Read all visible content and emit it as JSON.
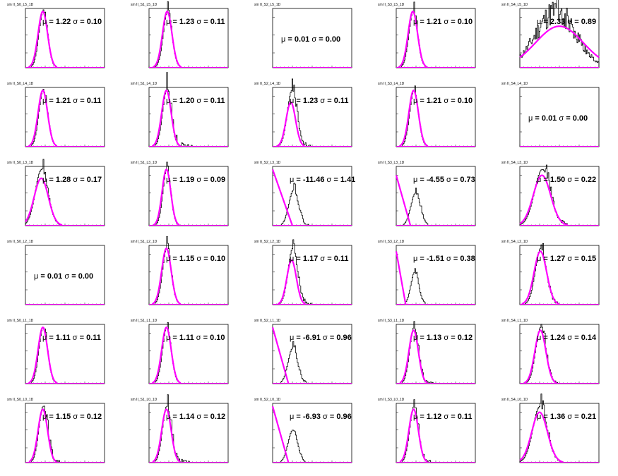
{
  "colors": {
    "fit": "#ff00ff",
    "hist": "#000000",
    "frame": "#000000",
    "background": "#ffffff"
  },
  "chart_data": [
    {
      "type": "histogram",
      "title": "sm II_S0_L5_1D",
      "mu": "1.22",
      "sigma": "0.10",
      "fit": {
        "mean": 0.22,
        "sigma": 0.06,
        "amp": 0.95,
        "kind": "gauss"
      },
      "hist": {
        "peak": 0.22,
        "width": 0.055,
        "tail": 0.05,
        "tailAmp": 0.25
      }
    },
    {
      "type": "histogram",
      "title": "sm II_S1_L5_1D",
      "mu": "1.23",
      "sigma": "0.11",
      "fit": {
        "mean": 0.23,
        "sigma": 0.06,
        "amp": 0.95,
        "kind": "gauss"
      },
      "hist": {
        "peak": 0.23,
        "width": 0.055,
        "tail": 0.04,
        "tailAmp": 0.2
      }
    },
    {
      "type": "histogram",
      "title": "sm II_S2_L5_1D",
      "mu": "0.01",
      "sigma": "0.00",
      "fit": null,
      "hist": null
    },
    {
      "type": "histogram",
      "title": "sm II_S3_L5_1D",
      "mu": "1.21",
      "sigma": "0.10",
      "fit": {
        "mean": 0.21,
        "sigma": 0.06,
        "amp": 0.95,
        "kind": "gauss"
      },
      "hist": {
        "peak": 0.21,
        "width": 0.055,
        "tail": 0.06,
        "tailAmp": 0.25
      }
    },
    {
      "type": "histogram",
      "title": "sm II_S4_L5_1D",
      "mu": "2.33",
      "sigma": "0.89",
      "fit": {
        "mean": 0.5,
        "sigma": 0.3,
        "amp": 0.7,
        "kind": "gauss"
      },
      "hist": {
        "peak": 0.45,
        "width": 0.25,
        "tail": 0.05,
        "tailAmp": 0.3,
        "noisy": true
      }
    },
    {
      "type": "histogram",
      "title": "sm II_S0_L4_1D",
      "mu": "1.21",
      "sigma": "0.11",
      "fit": {
        "mean": 0.22,
        "sigma": 0.06,
        "amp": 0.95,
        "kind": "gauss"
      },
      "hist": {
        "peak": 0.22,
        "width": 0.055,
        "tail": 0.05,
        "tailAmp": 0.25
      }
    },
    {
      "type": "histogram",
      "title": "sm II_S1_L4_1D",
      "mu": "1.20",
      "sigma": "0.11",
      "fit": {
        "mean": 0.22,
        "sigma": 0.06,
        "amp": 0.95,
        "kind": "gauss"
      },
      "hist": {
        "peak": 0.22,
        "width": 0.055,
        "tail": 0.12,
        "tailAmp": 0.35
      }
    },
    {
      "type": "histogram",
      "title": "sm II_S2_L4_1D",
      "mu": "1.23",
      "sigma": "0.11",
      "fit": {
        "mean": 0.23,
        "sigma": 0.06,
        "amp": 0.75,
        "kind": "gauss"
      },
      "hist": {
        "peak": 0.24,
        "width": 0.06,
        "tail": 0.1,
        "tailAmp": 0.3
      }
    },
    {
      "type": "histogram",
      "title": "sm II_S3_L4_1D",
      "mu": "1.21",
      "sigma": "0.10",
      "fit": {
        "mean": 0.22,
        "sigma": 0.06,
        "amp": 0.95,
        "kind": "gauss"
      },
      "hist": {
        "peak": 0.22,
        "width": 0.055,
        "tail": 0.04,
        "tailAmp": 0.15
      }
    },
    {
      "type": "histogram",
      "title": "sm II_S4_L4_1D",
      "mu": "0.01",
      "sigma": "0.00",
      "fit": null,
      "hist": null
    },
    {
      "type": "histogram",
      "title": "sm II_S0_L3_1D",
      "mu": "1.28",
      "sigma": "0.17",
      "fit": {
        "mean": 0.2,
        "sigma": 0.09,
        "amp": 0.8,
        "kind": "gauss"
      },
      "hist": {
        "peak": 0.2,
        "width": 0.08,
        "tail": 0.08,
        "tailAmp": 0.3
      }
    },
    {
      "type": "histogram",
      "title": "sm II_S1_L3_1D",
      "mu": "1.19",
      "sigma": "0.09",
      "fit": {
        "mean": 0.22,
        "sigma": 0.055,
        "amp": 0.95,
        "kind": "gauss"
      },
      "hist": {
        "peak": 0.22,
        "width": 0.05,
        "tail": 0.04,
        "tailAmp": 0.15
      }
    },
    {
      "type": "histogram",
      "title": "sm II_S2_L3_1D",
      "mu": "-11.46",
      "sigma": "1.41",
      "fit": {
        "mean": 0.0,
        "sigma": 0.0,
        "amp": 0.95,
        "kind": "line",
        "end": 0.25
      },
      "hist": {
        "peak": 0.26,
        "width": 0.06,
        "tail": 0.08,
        "tailAmp": 0.2,
        "amp": 0.6
      }
    },
    {
      "type": "histogram",
      "title": "sm II_S3_L3_1D",
      "mu": "-4.55",
      "sigma": "0.73",
      "fit": {
        "mean": 0.0,
        "sigma": 0.0,
        "amp": 0.85,
        "kind": "line",
        "end": 0.18
      },
      "hist": {
        "peak": 0.24,
        "width": 0.06,
        "tail": 0.06,
        "tailAmp": 0.2,
        "amp": 0.55
      }
    },
    {
      "type": "histogram",
      "title": "sm II_S4_L3_1D",
      "mu": "1.50",
      "sigma": "0.22",
      "fit": {
        "mean": 0.28,
        "sigma": 0.11,
        "amp": 0.85,
        "kind": "gauss"
      },
      "hist": {
        "peak": 0.28,
        "width": 0.1,
        "tail": 0.15,
        "tailAmp": 0.3
      }
    },
    {
      "type": "histogram",
      "title": "sm II_S0_L2_1D",
      "mu": "0.01",
      "sigma": "0.00",
      "fit": null,
      "hist": null
    },
    {
      "type": "histogram",
      "title": "sm II_S1_L2_1D",
      "mu": "1.15",
      "sigma": "0.10",
      "fit": {
        "mean": 0.22,
        "sigma": 0.06,
        "amp": 0.95,
        "kind": "gauss"
      },
      "hist": {
        "peak": 0.22,
        "width": 0.055,
        "tail": 0.05,
        "tailAmp": 0.25
      }
    },
    {
      "type": "histogram",
      "title": "sm II_S2_L2_1D",
      "mu": "1.17",
      "sigma": "0.11",
      "fit": {
        "mean": 0.24,
        "sigma": 0.06,
        "amp": 0.75,
        "kind": "gauss"
      },
      "hist": {
        "peak": 0.25,
        "width": 0.06,
        "tail": 0.1,
        "tailAmp": 0.25
      }
    },
    {
      "type": "histogram",
      "title": "sm II_S3_L2_1D",
      "mu": "-1.51",
      "sigma": "0.38",
      "fit": {
        "mean": 0.0,
        "sigma": 0.0,
        "amp": 0.9,
        "kind": "line",
        "end": 0.12
      },
      "hist": {
        "peak": 0.23,
        "width": 0.05,
        "tail": 0.06,
        "tailAmp": 0.15,
        "amp": 0.55
      }
    },
    {
      "type": "histogram",
      "title": "sm II_S4_L2_1D",
      "mu": "1.27",
      "sigma": "0.15",
      "fit": {
        "mean": 0.26,
        "sigma": 0.08,
        "amp": 0.9,
        "kind": "gauss"
      },
      "hist": {
        "peak": 0.26,
        "width": 0.07,
        "tail": 0.1,
        "tailAmp": 0.3
      }
    },
    {
      "type": "histogram",
      "title": "sm II_S0_L1_1D",
      "mu": "1.11",
      "sigma": "0.11",
      "fit": {
        "mean": 0.22,
        "sigma": 0.06,
        "amp": 0.95,
        "kind": "gauss"
      },
      "hist": {
        "peak": 0.22,
        "width": 0.055,
        "tail": 0.06,
        "tailAmp": 0.25
      }
    },
    {
      "type": "histogram",
      "title": "sm II_S1_L1_1D",
      "mu": "1.11",
      "sigma": "0.10",
      "fit": {
        "mean": 0.22,
        "sigma": 0.06,
        "amp": 0.95,
        "kind": "gauss"
      },
      "hist": {
        "peak": 0.22,
        "width": 0.055,
        "tail": 0.04,
        "tailAmp": 0.2
      }
    },
    {
      "type": "histogram",
      "title": "sm II_S2_L1_1D",
      "mu": "-6.91",
      "sigma": "0.96",
      "fit": {
        "mean": 0.0,
        "sigma": 0.0,
        "amp": 0.95,
        "kind": "line",
        "end": 0.2
      },
      "hist": {
        "peak": 0.25,
        "width": 0.06,
        "tail": 0.08,
        "tailAmp": 0.2,
        "amp": 0.6
      }
    },
    {
      "type": "histogram",
      "title": "sm II_S3_L1_1D",
      "mu": "1.13",
      "sigma": "0.12",
      "fit": {
        "mean": 0.22,
        "sigma": 0.06,
        "amp": 0.9,
        "kind": "gauss"
      },
      "hist": {
        "peak": 0.22,
        "width": 0.055,
        "tail": 0.1,
        "tailAmp": 0.25
      }
    },
    {
      "type": "histogram",
      "title": "sm II_S4_L1_1D",
      "mu": "1.24",
      "sigma": "0.14",
      "fit": {
        "mean": 0.26,
        "sigma": 0.07,
        "amp": 0.9,
        "kind": "gauss"
      },
      "hist": {
        "peak": 0.26,
        "width": 0.065,
        "tail": 0.08,
        "tailAmp": 0.3
      }
    },
    {
      "type": "histogram",
      "title": "sm II_S0_L0_1D",
      "mu": "1.15",
      "sigma": "0.12",
      "fit": {
        "mean": 0.22,
        "sigma": 0.06,
        "amp": 0.9,
        "kind": "gauss"
      },
      "hist": {
        "peak": 0.22,
        "width": 0.055,
        "tail": 0.1,
        "tailAmp": 0.35
      }
    },
    {
      "type": "histogram",
      "title": "sm II_S1_L0_1D",
      "mu": "1.14",
      "sigma": "0.12",
      "fit": {
        "mean": 0.22,
        "sigma": 0.06,
        "amp": 0.9,
        "kind": "gauss"
      },
      "hist": {
        "peak": 0.22,
        "width": 0.055,
        "tail": 0.12,
        "tailAmp": 0.3
      }
    },
    {
      "type": "histogram",
      "title": "sm II_S2_L0_1D",
      "mu": "-6.93",
      "sigma": "0.96",
      "fit": {
        "mean": 0.0,
        "sigma": 0.0,
        "amp": 0.95,
        "kind": "line",
        "end": 0.2
      },
      "hist": {
        "peak": 0.25,
        "width": 0.06,
        "tail": 0.08,
        "tailAmp": 0.2,
        "amp": 0.55
      }
    },
    {
      "type": "histogram",
      "title": "sm II_S3_L0_1D",
      "mu": "1.12",
      "sigma": "0.11",
      "fit": {
        "mean": 0.22,
        "sigma": 0.06,
        "amp": 0.9,
        "kind": "gauss"
      },
      "hist": {
        "peak": 0.22,
        "width": 0.055,
        "tail": 0.1,
        "tailAmp": 0.3
      }
    },
    {
      "type": "histogram",
      "title": "sm II_S4_L0_1D",
      "mu": "1.36",
      "sigma": "0.21",
      "fit": {
        "mean": 0.25,
        "sigma": 0.1,
        "amp": 0.85,
        "kind": "gauss"
      },
      "hist": {
        "peak": 0.25,
        "width": 0.09,
        "tail": 0.1,
        "tailAmp": 0.3
      }
    }
  ]
}
